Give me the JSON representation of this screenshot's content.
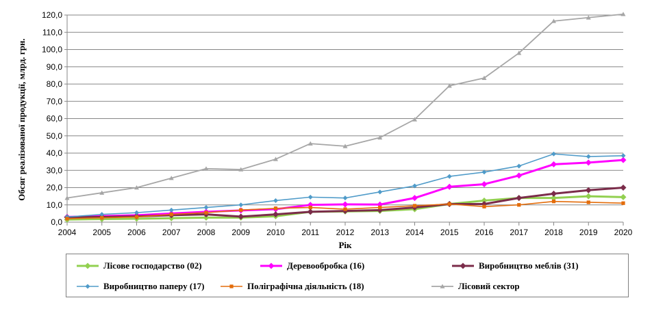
{
  "chart_data": {
    "type": "line",
    "xlabel": "Рік",
    "ylabel": "Обсяг реалізованої продукції, млрд. грн.",
    "x": [
      "2004",
      "2005",
      "2006",
      "2007",
      "2008",
      "2009",
      "2010",
      "2011",
      "2012",
      "2013",
      "2014",
      "2015",
      "2016",
      "2017",
      "2018",
      "2019",
      "2020"
    ],
    "yticks": [
      "0,0",
      "10,0",
      "20,0",
      "30,0",
      "40,0",
      "50,0",
      "60,0",
      "70,0",
      "80,0",
      "90,0",
      "100,0",
      "110,0",
      "120,0"
    ],
    "ylim": [
      0,
      120
    ],
    "grid": true,
    "legend_position": "bottom",
    "series": [
      {
        "name": "Лісове господарство  (02)",
        "color": "#92d050",
        "marker": "diamond",
        "values": [
          1.5,
          1.8,
          2.0,
          2.3,
          2.6,
          2.6,
          3.4,
          6.0,
          6.2,
          6.5,
          7.5,
          10.5,
          12.5,
          14.0,
          14.0,
          15.0,
          14.5
        ]
      },
      {
        "name": "Деревообробка  (16)",
        "color": "#ff00ff",
        "marker": "diamond",
        "values": [
          3.0,
          3.5,
          4.0,
          5.0,
          6.0,
          6.8,
          7.5,
          10.0,
          10.3,
          10.2,
          14.0,
          20.5,
          22.0,
          27.0,
          33.5,
          34.5,
          36.0
        ]
      },
      {
        "name": "Виробництво  меблів  (31)",
        "color": "#7b2c4a",
        "marker": "diamond",
        "values": [
          2.8,
          3.0,
          3.3,
          4.0,
          4.5,
          3.2,
          4.5,
          6.0,
          6.5,
          7.0,
          8.5,
          10.5,
          10.5,
          14.0,
          16.5,
          18.5,
          20.0
        ]
      },
      {
        "name": "Виробництво  паперу (17)",
        "color": "#4f9bc9",
        "marker": "diamond",
        "values": [
          3.0,
          4.5,
          5.5,
          7.0,
          8.5,
          10.0,
          12.5,
          14.5,
          14.0,
          17.5,
          21.0,
          26.5,
          29.0,
          32.5,
          39.5,
          38.0,
          38.5
        ]
      },
      {
        "name": "Поліграфічна  діяльність  (18)",
        "color": "#e36c0a",
        "marker": "square",
        "values": [
          2.0,
          2.5,
          3.0,
          4.5,
          5.5,
          7.0,
          8.0,
          8.5,
          7.5,
          8.5,
          9.5,
          10.5,
          9.0,
          10.0,
          12.0,
          11.5,
          11.0
        ]
      },
      {
        "name": "Лісовий  сектор",
        "color": "#a6a6a6",
        "marker": "triangle",
        "values": [
          14.0,
          17.0,
          20.0,
          25.5,
          31.0,
          30.5,
          36.5,
          45.5,
          44.0,
          49.0,
          59.5,
          79.0,
          83.5,
          98.0,
          116.5,
          118.5,
          120.5
        ]
      }
    ]
  }
}
